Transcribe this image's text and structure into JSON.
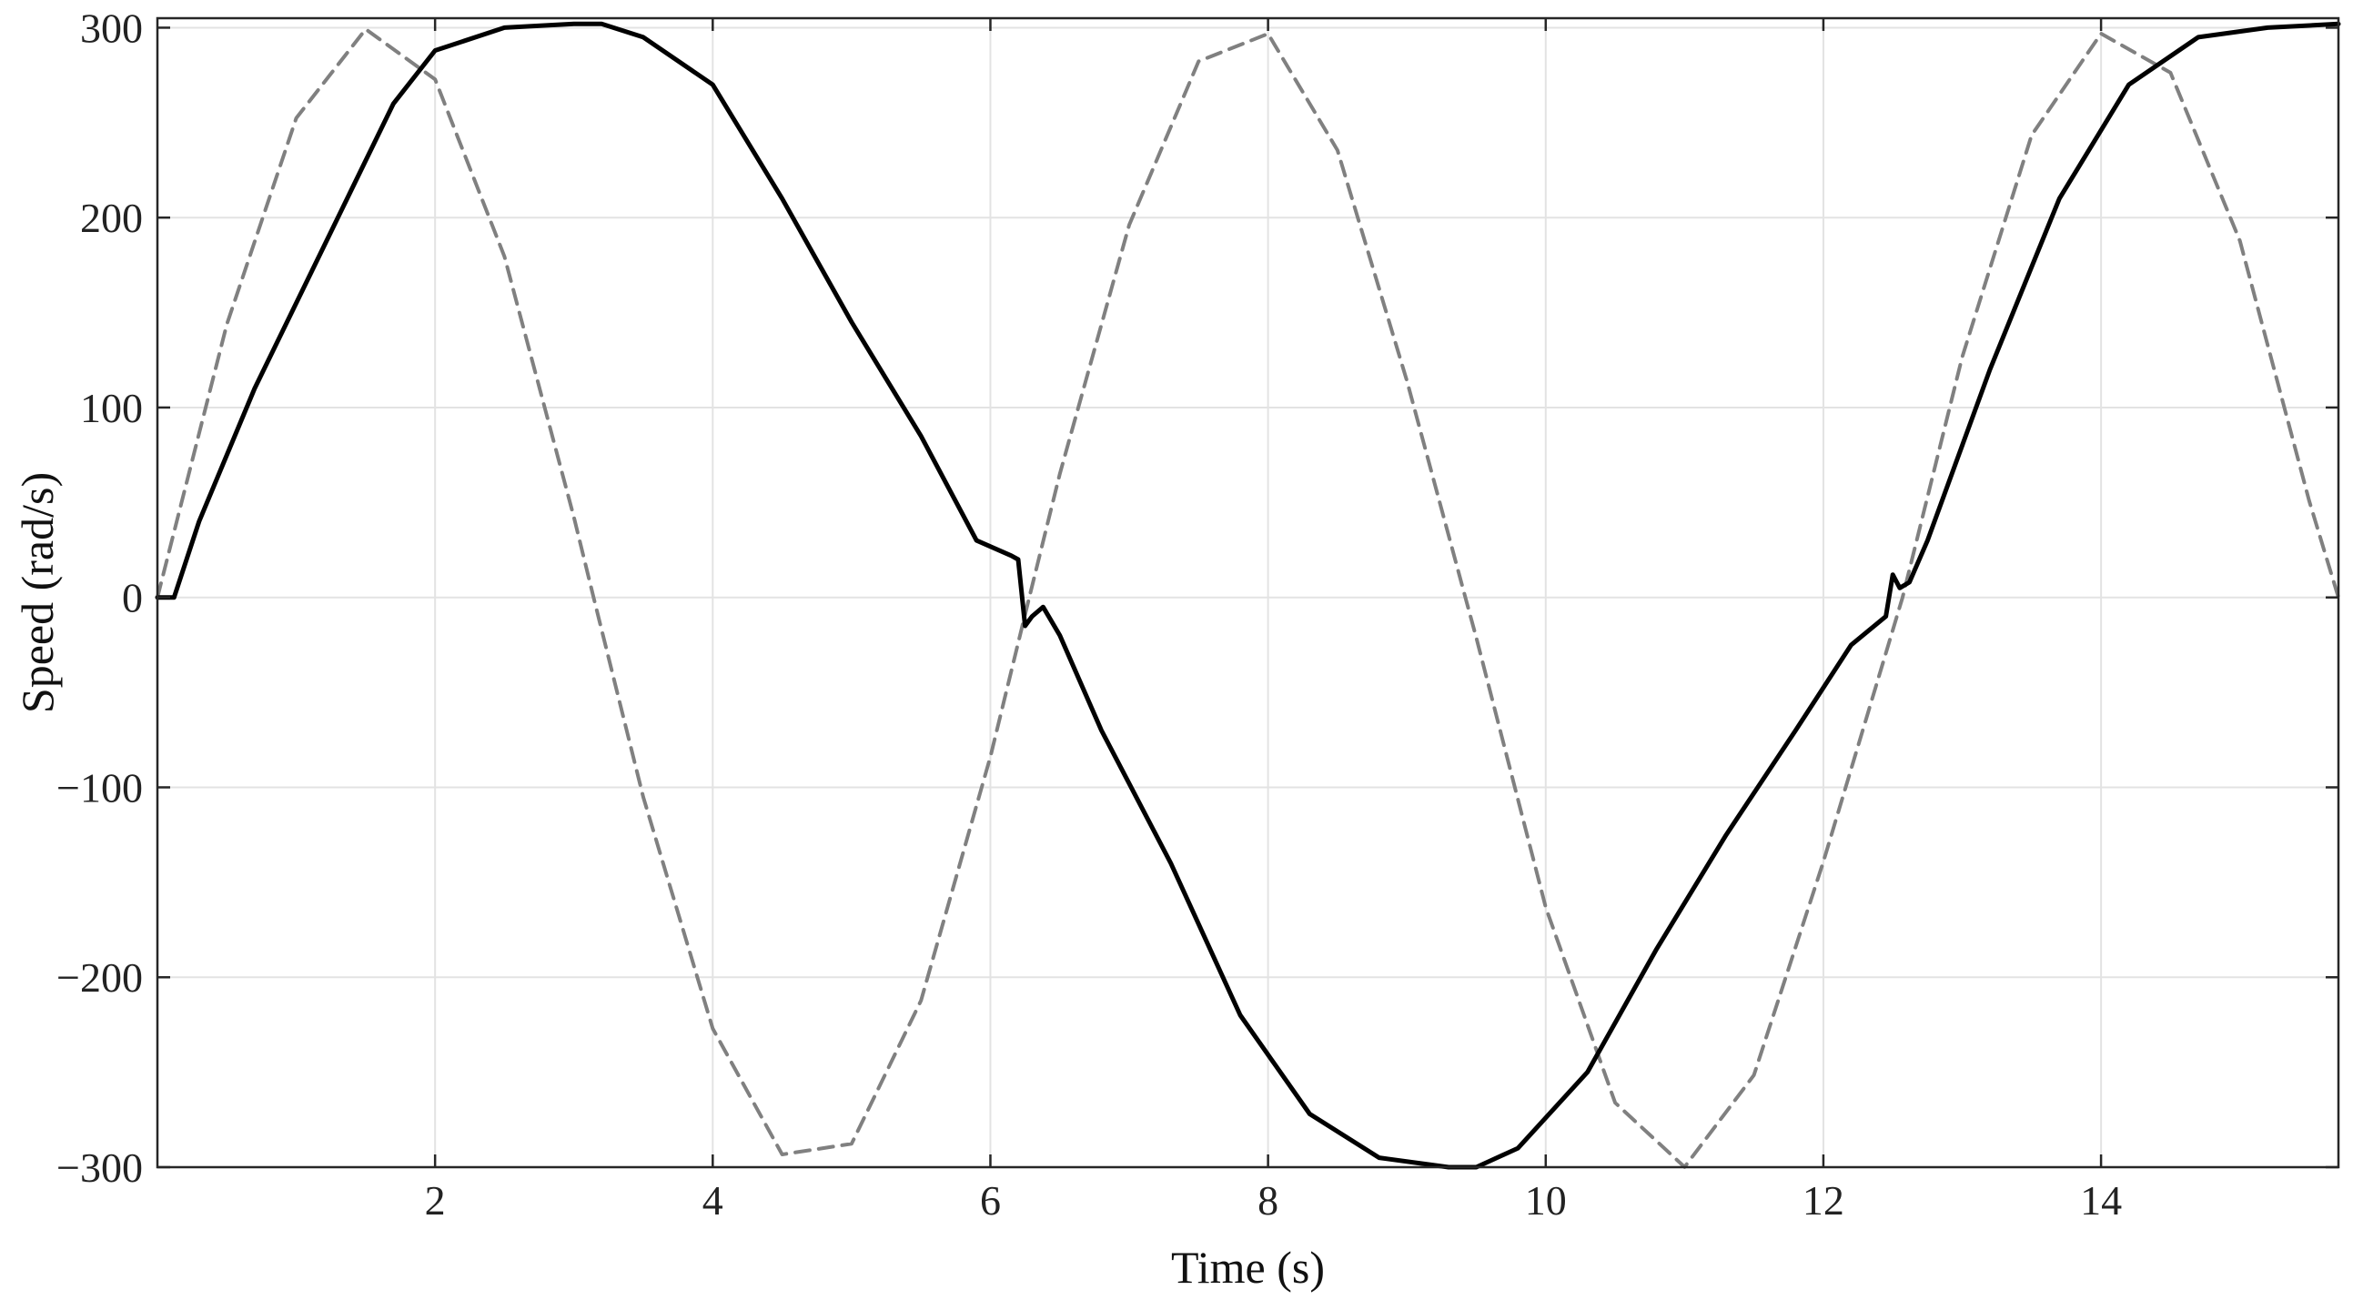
{
  "chart_data": {
    "type": "line",
    "xlabel": "Time (s)",
    "ylabel": "Speed (rad/s)",
    "xlim": [
      0,
      15.71
    ],
    "ylim": [
      -300,
      305
    ],
    "xticks": [
      2,
      4,
      6,
      8,
      10,
      12,
      14
    ],
    "xtick_labels": [
      "2",
      "4",
      "6",
      "8",
      "10",
      "12",
      "14"
    ],
    "yticks": [
      -300,
      -200,
      -100,
      0,
      100,
      200,
      300
    ],
    "ytick_labels": [
      "−300",
      "−200",
      "−100",
      "0",
      "100",
      "200",
      "300"
    ],
    "grid": true,
    "series": [
      {
        "style": "dashed",
        "color": "#808080",
        "x": [
          0,
          0.5,
          1,
          1.5,
          2,
          2.5,
          3,
          3.14,
          3.5,
          4,
          4.5,
          5,
          5.5,
          6,
          6.28,
          6.5,
          7,
          7.5,
          8,
          8.5,
          9,
          9.42,
          9.5,
          10,
          10.5,
          11,
          11.5,
          12,
          12.57,
          13,
          13.5,
          14,
          14.5,
          15,
          15.5,
          15.71
        ],
        "y": [
          0,
          143.8,
          252.4,
          299.2,
          272.8,
          179.5,
          42.3,
          0.5,
          -105.2,
          -227,
          -293.3,
          -287.7,
          -212.3,
          -83.8,
          0,
          65.1,
          196.1,
          282.3,
          296.8,
          235.5,
          114.1,
          0.3,
          -21.2,
          -163.2,
          -266.1,
          -299.9,
          -251.5,
          -139.2,
          -0.1,
          126.5,
          243.4,
          296.9,
          276.3,
          187.8,
          50.6,
          0
        ]
      },
      {
        "style": "solid",
        "color": "#000000",
        "x": [
          0,
          0.12,
          0.3,
          0.7,
          1.2,
          1.7,
          2.0,
          2.5,
          3.0,
          3.2,
          3.5,
          4.0,
          4.5,
          5.0,
          5.5,
          5.9,
          6.15,
          6.2,
          6.25,
          6.3,
          6.38,
          6.5,
          6.8,
          7.3,
          7.8,
          8.3,
          8.8,
          9.3,
          9.5,
          9.8,
          10.3,
          10.8,
          11.3,
          11.8,
          12.2,
          12.45,
          12.5,
          12.55,
          12.62,
          12.75,
          13.2,
          13.7,
          14.2,
          14.7,
          15.2,
          15.71
        ],
        "y": [
          0,
          0,
          40,
          110,
          185,
          260,
          288,
          300,
          302,
          302,
          295,
          270,
          210,
          145,
          85,
          30,
          22,
          20,
          -15,
          -10,
          -5,
          -20,
          -70,
          -140,
          -220,
          -272,
          -295,
          -300,
          -300,
          -290,
          -250,
          -185,
          -125,
          -70,
          -25,
          -10,
          12,
          5,
          8,
          30,
          120,
          210,
          270,
          295,
          300,
          302
        ]
      }
    ]
  }
}
